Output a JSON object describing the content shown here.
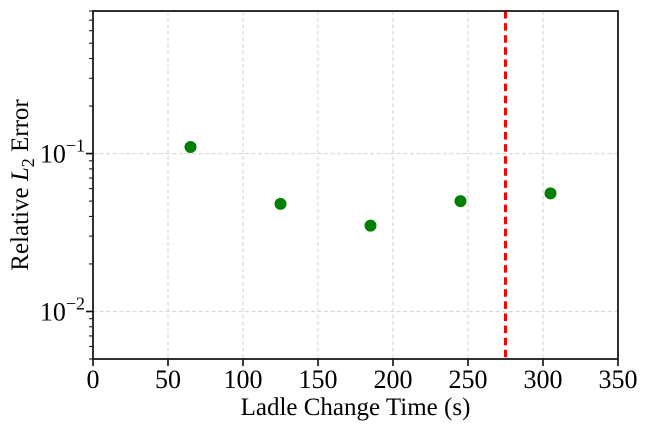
{
  "figure": {
    "background": "#ffffff"
  },
  "chart_data": {
    "type": "scatter",
    "title": "",
    "xlabel": "Ladle Change Time (s)",
    "ylabel": "Relative L2 Error",
    "ylabel_parts": {
      "pre": "Relative ",
      "var": "L",
      "sub": "2",
      "post": " Error"
    },
    "xscale": "linear",
    "yscale": "log",
    "xlim": [
      0,
      350
    ],
    "ylim": [
      0.005,
      0.8
    ],
    "xticks": [
      0,
      50,
      100,
      150,
      200,
      250,
      300,
      350
    ],
    "yticks": [
      {
        "value": 0.1,
        "base": "10",
        "exp": "−1"
      },
      {
        "value": 0.01,
        "base": "10",
        "exp": "−2"
      }
    ],
    "grid": {
      "on": true,
      "which": "major",
      "linestyle": "dashed",
      "color": "#d8d8d8"
    },
    "series": [
      {
        "name": "relative-l2-error",
        "marker": "circle",
        "color": "#008000",
        "points": [
          {
            "x": 65,
            "y": 0.11
          },
          {
            "x": 125,
            "y": 0.048
          },
          {
            "x": 185,
            "y": 0.035
          },
          {
            "x": 245,
            "y": 0.05
          },
          {
            "x": 305,
            "y": 0.056
          }
        ]
      }
    ],
    "vline": {
      "x": 275,
      "color": "#ff0000",
      "linestyle": "dashed"
    },
    "legend": null,
    "axis_color": "#1a1a1a",
    "text_color": "#000000"
  }
}
